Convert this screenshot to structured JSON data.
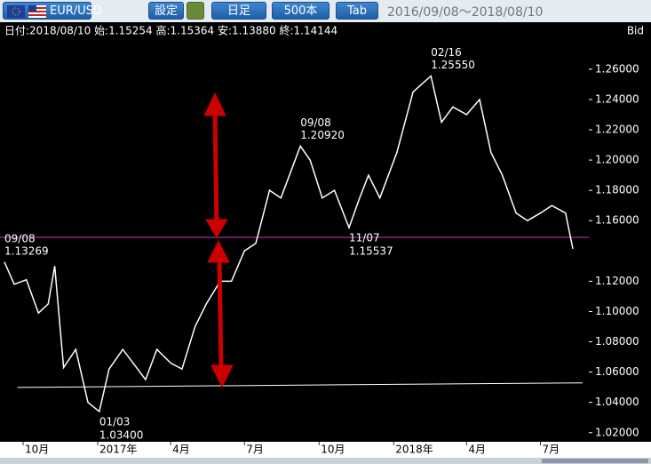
{
  "toolbar": {
    "symbol": "EUR/USD",
    "settings": "設定",
    "period": "日足",
    "count": "500本",
    "tab": "Tab",
    "range": "2016/09/08～2018/08/10"
  },
  "chart_data": {
    "type": "line",
    "info": "日付:2018/08/10 始:1.15254 高:1.15364 安:1.13880 終:1.14144",
    "price_type": "Bid",
    "x": [
      "2016/09/08",
      "2016/09/20",
      "2016/10/05",
      "2016/10/20",
      "2016/11/01",
      "2016/11/09",
      "2016/11/20",
      "2016/12/05",
      "2016/12/20",
      "2017/01/03",
      "2017/01/15",
      "2017/02/01",
      "2017/02/15",
      "2017/03/01",
      "2017/03/15",
      "2017/04/01",
      "2017/04/15",
      "2017/05/01",
      "2017/05/15",
      "2017/06/01",
      "2017/06/15",
      "2017/07/01",
      "2017/07/15",
      "2017/08/01",
      "2017/08/15",
      "2017/09/08",
      "2017/09/20",
      "2017/10/05",
      "2017/10/20",
      "2017/11/07",
      "2017/11/20",
      "2017/12/01",
      "2017/12/15",
      "2018/01/05",
      "2018/01/25",
      "2018/02/16",
      "2018/03/01",
      "2018/03/15",
      "2018/04/01",
      "2018/04/17",
      "2018/05/01",
      "2018/05/15",
      "2018/06/01",
      "2018/06/15",
      "2018/07/01",
      "2018/07/15",
      "2018/08/01",
      "2018/08/10"
    ],
    "series": [
      {
        "name": "EUR/USD",
        "color": "#ffffff",
        "values": [
          1.1327,
          1.118,
          1.121,
          1.099,
          1.105,
          1.13,
          1.063,
          1.075,
          1.04,
          1.034,
          1.062,
          1.075,
          1.065,
          1.055,
          1.075,
          1.066,
          1.062,
          1.09,
          1.105,
          1.12,
          1.12,
          1.14,
          1.145,
          1.18,
          1.175,
          1.2092,
          1.2,
          1.175,
          1.18,
          1.1554,
          1.175,
          1.19,
          1.175,
          1.205,
          1.245,
          1.2555,
          1.225,
          1.235,
          1.23,
          1.24,
          1.205,
          1.19,
          1.165,
          1.16,
          1.165,
          1.17,
          1.165,
          1.1414
        ]
      }
    ],
    "xlim": [
      "2016/09/08",
      "2018/08/10"
    ],
    "xticks": [
      {
        "value": "2016/10/01",
        "label": "10月"
      },
      {
        "value": "2017/01/01",
        "label": "2017年"
      },
      {
        "value": "2017/04/01",
        "label": "4月"
      },
      {
        "value": "2017/07/01",
        "label": "7月"
      },
      {
        "value": "2017/10/01",
        "label": "10月"
      },
      {
        "value": "2018/01/01",
        "label": "2018年"
      },
      {
        "value": "2018/04/01",
        "label": "4月"
      },
      {
        "value": "2018/07/01",
        "label": "7月"
      }
    ],
    "ylim": [
      1.014,
      1.291
    ],
    "yticks": [
      {
        "value": 1.02,
        "label": "1.02000"
      },
      {
        "value": 1.04,
        "label": "1.04000"
      },
      {
        "value": 1.06,
        "label": "1.06000"
      },
      {
        "value": 1.08,
        "label": "1.08000"
      },
      {
        "value": 1.1,
        "label": "1.10000"
      },
      {
        "value": 1.12,
        "label": "1.12000"
      },
      {
        "value": 1.16,
        "label": "1.16000"
      },
      {
        "value": 1.18,
        "label": "1.18000"
      },
      {
        "value": 1.2,
        "label": "1.20000"
      },
      {
        "value": 1.22,
        "label": "1.22000"
      },
      {
        "value": 1.24,
        "label": "1.24000"
      },
      {
        "value": 1.26,
        "label": "1.26000"
      }
    ],
    "hline": {
      "value": 1.149,
      "color": "#cc33cc"
    },
    "trendline": {
      "x": [
        "2016/09/24",
        "2018/08/22"
      ],
      "y": [
        1.0499,
        1.0529
      ],
      "color": "#ffffff"
    },
    "annotations": [
      {
        "x": "2016/09/08",
        "y": 1.13269,
        "date_label": "09/08",
        "value_label": "1.13269",
        "placement": "above"
      },
      {
        "x": "2017/01/03",
        "y": 1.034,
        "date_label": "01/03",
        "value_label": "1.03400",
        "placement": "below"
      },
      {
        "x": "2017/09/08",
        "y": 1.2092,
        "date_label": "09/08",
        "value_label": "1.20920",
        "placement": "above"
      },
      {
        "x": "2017/11/07",
        "y": 1.15537,
        "date_label": "11/07",
        "value_label": "1.15537",
        "placement": "below"
      },
      {
        "x": "2018/02/16",
        "y": 1.2555,
        "date_label": "02/16",
        "value_label": "1.25550",
        "placement": "above"
      }
    ]
  }
}
